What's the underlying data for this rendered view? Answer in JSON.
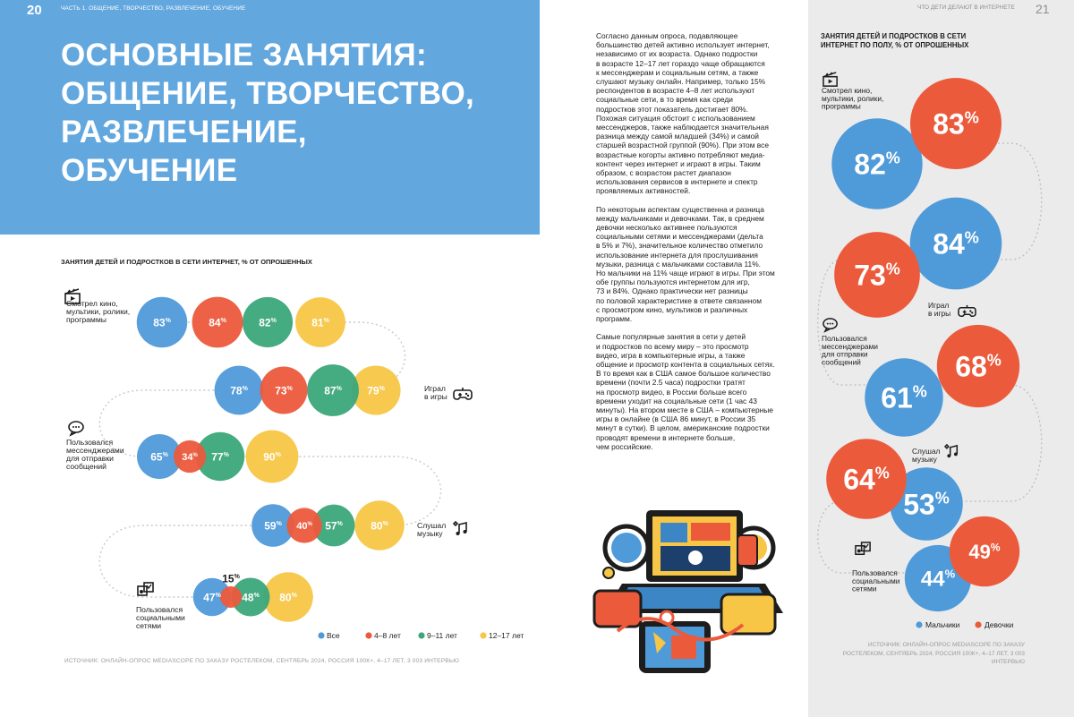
{
  "left_page": {
    "page_number": "20",
    "running_head": "ЧАСТЬ 1. ОБЩЕНИЕ, ТВОРЧЕСТВО, РАЗВЛЕЧЕНИЕ, ОБУЧЕНИЕ",
    "title_lines": [
      "ОСНОВНЫЕ ЗАНЯТИЯ:",
      "ОБЩЕНИЕ, ТВОРЧЕСТВО,",
      "РАЗВЛЕЧЕНИЕ,",
      "ОБУЧЕНИЕ"
    ],
    "source": "ИСТОЧНИК: ОНЛАЙН-ОПРОС MEDIASCOPE ПО ЗАКАЗУ РОСТЕЛЕКОМ, СЕНТЯБРЬ 2024, РОССИЯ 100К+, 4–17 ЛЕТ, 3 003 ИНТЕРВЬЮ"
  },
  "right_page": {
    "page_number": "21",
    "running_head": "ЧТО ДЕТИ ДЕЛАЮТ В ИНТЕРНЕТЕ",
    "paragraphs": [
      [
        "Согласно данным опроса, подавляющее",
        "большинство детей активно использует интернет,",
        "независимо от их возраста. Однако подростки",
        "в возрасте 12–17 лет гораздо чаще обращаются",
        "к мессенджерам и социальным сетям, а также",
        "слушают музыку онлайн. Например, только 15%",
        "респондентов в возрасте 4–8 лет используют",
        "социальные сети, в то время как среди",
        "подростков этот показатель достигает 80%.",
        "Похожая ситуация обстоит с использованием",
        "мессенджеров, также наблюдается значительная",
        "разница между самой младшей (34%) и самой",
        "старшей возрастной группой (90%). При этом все",
        "возрастные когорты активно потребляют медиа-",
        "контент через интернет и играют в игры. Таким",
        "образом, с возрастом растет диапазон",
        "использования сервисов в интернете и спектр",
        "проявляемых активностей."
      ],
      [
        "По некоторым аспектам существенна и разница",
        "между мальчиками и девочками. Так, в среднем",
        "девочки несколько активнее пользуются",
        "социальными сетями и мессенджерами (дельта",
        "в 5% и 7%), значительное количество отметило",
        "использование интернета для прослушивания",
        "музыки, разница с мальчиками составила 11%.",
        "Но мальчики на 11% чаще играют в игры. При этом",
        "обе группы пользуются интернетом для игр,",
        "73 и 84%. Однако практически нет разницы",
        "по половой характеристике в ответе связанном",
        "с просмотром кино, мультиков и различных",
        "программ."
      ],
      [
        "Самые популярные занятия в сети у детей",
        "и подростков по всему миру – это просмотр",
        "видео, игра в компьютерные игры, а также",
        "общение и просмотр контента в социальных сетях.",
        "В то время как в США самое большое количество",
        "времени (почти 2.5 часа) подростки тратят",
        "на просмотр видео, в России больше всего",
        "времени уходит на социальные сети (1 час 43",
        "минуты). На втором месте в США – компьютерные",
        "игры в онлайне (в США 86 минут, в России 35",
        "минут в сутки). В целом, американские подростки",
        "проводят времени в интернете больше,",
        "чем российские."
      ]
    ],
    "source": "ИСТОЧНИК: ОНЛАЙН-ОПРОС MEDIASCOPE ПО ЗАКАЗУ РОСТЕЛЕКОМ, СЕНТЯБРЬ 2024, РОССИЯ 100К+, 4–17 ЛЕТ, 3 003 ИНТЕРВЬЮ"
  },
  "chart_data": [
    {
      "type": "bubble",
      "title": "ЗАНЯТИЯ ДЕТЕЙ И ПОДРОСТКОВ В СЕТИ ИНТЕРНЕТ, % ОТ ОПРОШЕННЫХ",
      "series_names": [
        "Все",
        "4–8 лет",
        "9–11 лет",
        "12–17 лет"
      ],
      "series_colors": [
        "#4f9ad9",
        "#ec5a3c",
        "#3ba77a",
        "#f7c646"
      ],
      "unit": "%",
      "categories": [
        {
          "label_lines": [
            "Смотрел кино,",
            "мультики, ролики,",
            "программы"
          ],
          "icon": "film-clapper-icon",
          "values": [
            83,
            84,
            82,
            81
          ]
        },
        {
          "label_lines": [
            "Играл",
            "в игры"
          ],
          "icon": "gamepad-icon",
          "values": [
            78,
            73,
            87,
            79
          ]
        },
        {
          "label_lines": [
            "Пользовался",
            "мессенджерами",
            "для отправки",
            "сообщений"
          ],
          "icon": "chat-bubbles-icon",
          "values": [
            65,
            34,
            77,
            90
          ]
        },
        {
          "label_lines": [
            "Слушал",
            "музыку"
          ],
          "icon": "music-notes-icon",
          "values": [
            59,
            40,
            57,
            80
          ]
        },
        {
          "label_lines": [
            "Пользовался",
            "социальными",
            "сетями"
          ],
          "icon": "social-network-icon",
          "values": [
            47,
            15,
            48,
            80
          ]
        }
      ]
    },
    {
      "type": "bubble",
      "title_lines": [
        "ЗАНЯТИЯ ДЕТЕЙ И ПОДРОСТКОВ В СЕТИ",
        "ИНТЕРНЕТ ПО ПОЛУ, % ОТ ОПРОШЕННЫХ"
      ],
      "series_names": [
        "Мальчики",
        "Девочки"
      ],
      "series_colors": [
        "#4f9ad9",
        "#ec5a3c"
      ],
      "unit": "%",
      "categories": [
        {
          "label_lines": [
            "Смотрел кино,",
            "мультики, ролики,",
            "программы"
          ],
          "icon": "film-clapper-icon",
          "values": [
            82,
            83
          ]
        },
        {
          "label_lines": [
            "Играл",
            "в игры"
          ],
          "icon": "gamepad-icon",
          "values": [
            84,
            73
          ]
        },
        {
          "label_lines": [
            "Пользовался",
            "мессенджерами",
            "для отправки",
            "сообщений"
          ],
          "icon": "chat-bubbles-icon",
          "values": [
            61,
            68
          ]
        },
        {
          "label_lines": [
            "Слушал",
            "музыку"
          ],
          "icon": "music-notes-icon",
          "values": [
            53,
            64
          ]
        },
        {
          "label_lines": [
            "Пользовался",
            "социальными",
            "сетями"
          ],
          "icon": "social-network-icon",
          "values": [
            44,
            49
          ]
        }
      ]
    }
  ]
}
